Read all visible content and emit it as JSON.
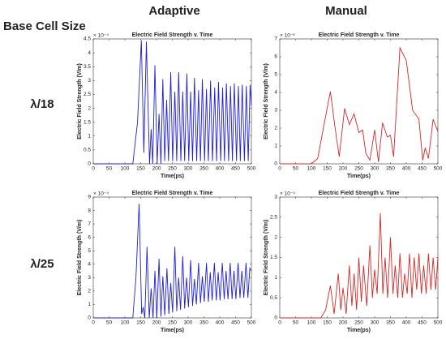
{
  "headers": {
    "row_label": "Base Cell Size",
    "columns": [
      "Adaptive",
      "Manual"
    ],
    "rows": [
      "λ/18",
      "λ/25"
    ]
  },
  "chart_data": [
    {
      "type": "line",
      "title": "Electric Field Strength v. Time",
      "x_label": "Time(ps)",
      "y_label": "Electric Field Strength (V/m)",
      "multiplier": "× 10⁻⁴",
      "x": [
        0,
        125,
        140,
        152,
        160,
        168,
        178,
        183,
        188,
        195,
        202,
        208,
        214,
        220,
        226,
        232,
        238,
        245,
        251,
        258,
        264,
        270,
        277,
        283,
        289,
        296,
        302,
        308,
        314,
        320,
        327,
        333,
        339,
        345,
        352,
        358,
        364,
        371,
        377,
        384,
        390,
        396,
        403,
        409,
        415,
        421,
        428,
        434,
        440,
        446,
        453,
        459,
        465,
        471,
        478,
        484,
        490,
        496,
        500
      ],
      "values": [
        0,
        0,
        1.5,
        4.45,
        0.4,
        4.4,
        0,
        1.25,
        0,
        3.55,
        0,
        1.8,
        0,
        3.05,
        0.1,
        2.3,
        0.1,
        3.3,
        0.1,
        2.6,
        0.1,
        3.3,
        0.1,
        2.6,
        0.1,
        3.25,
        0.1,
        2.6,
        0.1,
        3.1,
        0.1,
        2.65,
        0.1,
        3.05,
        0.1,
        2.7,
        0.1,
        3.0,
        0.1,
        2.75,
        0.1,
        2.95,
        0.1,
        2.75,
        0.1,
        2.9,
        0.1,
        2.8,
        0.1,
        2.9,
        0.1,
        2.8,
        0.1,
        2.85,
        0.1,
        2.8,
        0.1,
        2.85,
        2.1
      ],
      "color": "#1f1fd6",
      "xlim": [
        0,
        500
      ],
      "xticks": [
        0,
        50,
        100,
        150,
        200,
        250,
        300,
        350,
        400,
        450,
        500
      ],
      "ylim": [
        0,
        4.5
      ],
      "yticks": [
        0,
        0.5,
        1,
        1.5,
        2,
        2.5,
        3,
        3.5,
        4,
        4.5
      ]
    },
    {
      "type": "line",
      "title": "Electric Field Strength v. Time",
      "x_label": "Time(ps)",
      "y_label": "Electric Field Strength (V/m)",
      "multiplier": "× 10⁻⁶",
      "x": [
        0,
        100,
        120,
        140,
        160,
        175,
        188,
        205,
        220,
        235,
        250,
        262,
        272,
        285,
        300,
        312,
        325,
        340,
        350,
        360,
        380,
        400,
        420,
        440,
        452,
        460,
        470,
        485,
        500
      ],
      "values": [
        0,
        0,
        0.3,
        2.2,
        4.05,
        2.0,
        0.4,
        3.1,
        2.2,
        2.8,
        1.75,
        1.9,
        0.6,
        0.2,
        1.9,
        0.1,
        2.3,
        1.5,
        1.6,
        0.4,
        6.5,
        5.8,
        3.0,
        2.5,
        0.2,
        0.9,
        0.3,
        2.5,
        1.8
      ],
      "color": "#d62728",
      "xlim": [
        0,
        500
      ],
      "xticks": [
        0,
        50,
        100,
        150,
        200,
        250,
        300,
        350,
        400,
        450,
        500
      ],
      "ylim": [
        0,
        7
      ],
      "yticks": [
        0,
        1,
        2,
        3,
        4,
        5,
        6,
        7
      ]
    },
    {
      "type": "line",
      "title": "Electric Field Strength v. Time",
      "x_label": "Time(ps)",
      "y_label": "Electric Field Strength (V/m)",
      "multiplier": "× 10⁻⁴",
      "x": [
        0,
        125,
        135,
        145,
        153,
        158,
        163,
        170,
        177,
        183,
        189,
        195,
        201,
        208,
        214,
        220,
        226,
        233,
        239,
        245,
        251,
        258,
        264,
        270,
        276,
        283,
        289,
        295,
        301,
        308,
        314,
        320,
        326,
        333,
        339,
        345,
        351,
        358,
        364,
        370,
        376,
        383,
        389,
        395,
        401,
        408,
        414,
        420,
        426,
        433,
        439,
        445,
        451,
        458,
        464,
        470,
        476,
        483,
        489,
        495,
        500
      ],
      "values": [
        0,
        0,
        3.0,
        8.5,
        0.3,
        0.8,
        0,
        5.3,
        0,
        2.2,
        0,
        3.5,
        0,
        4.4,
        0.1,
        3.1,
        0.2,
        3.7,
        0.3,
        2.6,
        0.4,
        5.3,
        0.5,
        3.0,
        0.6,
        4.6,
        0.7,
        3.0,
        0.8,
        4.3,
        0.9,
        2.9,
        1.0,
        4.1,
        1.1,
        3.1,
        1.2,
        4.1,
        1.2,
        3.4,
        1.3,
        4.1,
        1.3,
        3.4,
        1.3,
        4.1,
        1.4,
        3.5,
        1.4,
        4.1,
        1.4,
        3.5,
        1.4,
        4.1,
        1.5,
        3.5,
        1.5,
        4.1,
        1.5,
        3.7,
        3.5
      ],
      "color": "#1f1fd6",
      "xlim": [
        0,
        500
      ],
      "xticks": [
        0,
        50,
        100,
        150,
        200,
        250,
        300,
        350,
        400,
        450,
        500
      ],
      "ylim": [
        0,
        9
      ],
      "yticks": [
        0,
        1,
        2,
        3,
        4,
        5,
        6,
        7,
        8,
        9
      ]
    },
    {
      "type": "line",
      "title": "Electric Field Strength v. Time",
      "x_label": "Time(ps)",
      "y_label": "Electric Field Strength (V/m)",
      "multiplier": "× 10⁻⁵",
      "x": [
        0,
        130,
        145,
        160,
        172,
        185,
        193,
        200,
        210,
        220,
        228,
        235,
        243,
        250,
        258,
        265,
        275,
        285,
        293,
        300,
        308,
        318,
        326,
        333,
        341,
        350,
        358,
        365,
        373,
        380,
        388,
        395,
        403,
        410,
        418,
        425,
        433,
        440,
        448,
        455,
        463,
        470,
        478,
        485,
        493,
        500
      ],
      "values": [
        0,
        0,
        0.2,
        0.8,
        0.1,
        1.1,
        0.2,
        0.75,
        0.1,
        1.3,
        0.3,
        1.1,
        0.2,
        1.5,
        0.4,
        1.3,
        0.3,
        1.8,
        0.5,
        1.2,
        0.6,
        2.6,
        0.6,
        1.5,
        0.5,
        2.0,
        0.6,
        1.3,
        0.5,
        1.6,
        0.5,
        1.1,
        0.6,
        1.6,
        0.5,
        1.5,
        0.7,
        1.6,
        0.6,
        1.3,
        0.6,
        1.6,
        0.7,
        1.5,
        0.7,
        1.5
      ],
      "color": "#d62728",
      "xlim": [
        0,
        500
      ],
      "xticks": [
        0,
        50,
        100,
        150,
        200,
        250,
        300,
        350,
        400,
        450,
        500
      ],
      "ylim": [
        0,
        3
      ],
      "yticks": [
        0,
        0.5,
        1,
        1.5,
        2,
        2.5,
        3
      ]
    }
  ]
}
